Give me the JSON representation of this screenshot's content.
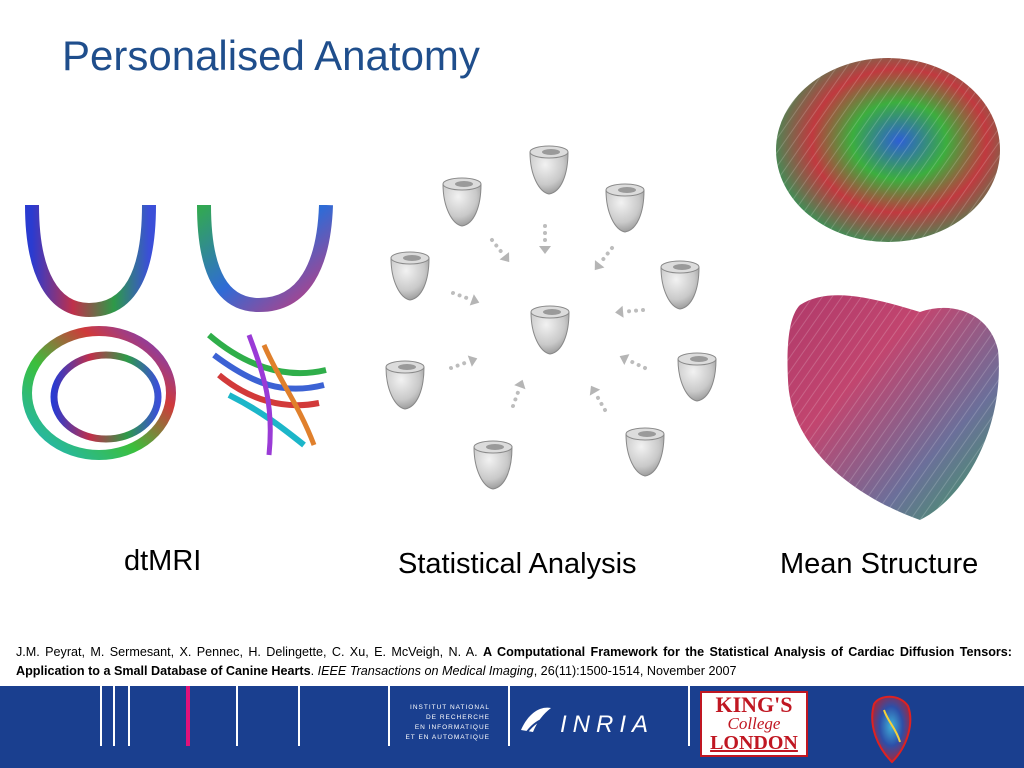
{
  "slide": {
    "title": "Personalised Anatomy",
    "captions": {
      "dtmri": "dtMRI",
      "statistical": "Statistical Analysis",
      "mean": "Mean Structure"
    },
    "reference": {
      "authors": "J.M. Peyrat, M. Sermesant, X. Pennec, H. Delingette, C. Xu, E. McVeigh, N. A. ",
      "paper_title": "A Computational Framework for the Statistical Analysis of Cardiac Diffusion Tensors: Application to a Small Database of Canine Hearts",
      "sep": ". ",
      "journal": "IEEE Transactions on Medical Imaging",
      "details": ", 26(11):1500-1514, November 2007"
    }
  },
  "footer": {
    "institute_lines": [
      "INSTITUT NATIONAL",
      "DE RECHERCHE",
      "EN INFORMATIQUE",
      "ET EN AUTOMATIQUE"
    ],
    "inria": "INRIA",
    "kings": [
      "KING'S",
      "College",
      "LONDON"
    ]
  },
  "colors": {
    "title": "#1f4e8c",
    "footer_bg": "#1a3f8f",
    "accent_pink": "#e0127a",
    "kings_red": "#c01722"
  },
  "icons": [
    "heart-logo-icon",
    "inria-logo-icon",
    "arrow-icon"
  ]
}
